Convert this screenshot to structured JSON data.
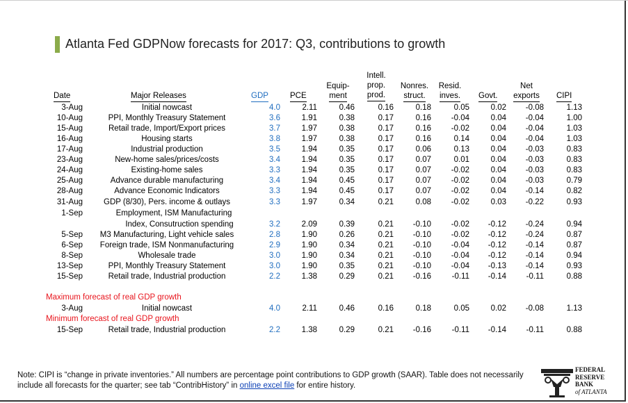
{
  "title": "Atlanta Fed GDPNow forecasts for 2017: Q3, contributions to growth",
  "headers": {
    "date": "Date",
    "releases": "Major Releases",
    "gdp": "GDP",
    "pce": "PCE",
    "equip_1": "Equip-",
    "equip_2": "ment",
    "ipp_1": "Intell.",
    "ipp_2": "prop.",
    "ipp_3": "prod.",
    "nonres_1": "Nonres.",
    "nonres_2": "struct.",
    "resid_1": "Resid.",
    "resid_2": "inves.",
    "govt": "Govt.",
    "netexp_1": "Net",
    "netexp_2": "exports",
    "cipi": "CIPI"
  },
  "rows": [
    {
      "date": "3-Aug",
      "release": "Initial nowcast",
      "gdp": "4.0",
      "pce": "2.11",
      "equip": "0.46",
      "ipp": "0.16",
      "nonres": "0.18",
      "resid": "0.05",
      "govt": "0.02",
      "netexp": "-0.08",
      "cipi": "1.13"
    },
    {
      "date": "10-Aug",
      "release": "PPI, Monthly Treasury Statement",
      "gdp": "3.6",
      "pce": "1.91",
      "equip": "0.38",
      "ipp": "0.17",
      "nonres": "0.16",
      "resid": "-0.04",
      "govt": "0.04",
      "netexp": "-0.04",
      "cipi": "1.00"
    },
    {
      "date": "15-Aug",
      "release": "Retail trade, Import/Export prices",
      "gdp": "3.7",
      "pce": "1.97",
      "equip": "0.38",
      "ipp": "0.17",
      "nonres": "0.16",
      "resid": "-0.02",
      "govt": "0.04",
      "netexp": "-0.04",
      "cipi": "1.03"
    },
    {
      "date": "16-Aug",
      "release": "Housing starts",
      "gdp": "3.8",
      "pce": "1.97",
      "equip": "0.38",
      "ipp": "0.17",
      "nonres": "0.16",
      "resid": "0.14",
      "govt": "0.04",
      "netexp": "-0.04",
      "cipi": "1.03"
    },
    {
      "date": "17-Aug",
      "release": "Industrial production",
      "gdp": "3.5",
      "pce": "1.94",
      "equip": "0.35",
      "ipp": "0.17",
      "nonres": "0.06",
      "resid": "0.13",
      "govt": "0.04",
      "netexp": "-0.03",
      "cipi": "0.83"
    },
    {
      "date": "23-Aug",
      "release": "New-home sales/prices/costs",
      "gdp": "3.4",
      "pce": "1.94",
      "equip": "0.35",
      "ipp": "0.17",
      "nonres": "0.07",
      "resid": "0.01",
      "govt": "0.04",
      "netexp": "-0.03",
      "cipi": "0.83"
    },
    {
      "date": "24-Aug",
      "release": "Existing-home sales",
      "gdp": "3.3",
      "pce": "1.94",
      "equip": "0.35",
      "ipp": "0.17",
      "nonres": "0.07",
      "resid": "-0.02",
      "govt": "0.04",
      "netexp": "-0.03",
      "cipi": "0.83"
    },
    {
      "date": "25-Aug",
      "release": "Advance durable manufacturing",
      "gdp": "3.4",
      "pce": "1.94",
      "equip": "0.45",
      "ipp": "0.17",
      "nonres": "0.07",
      "resid": "-0.02",
      "govt": "0.04",
      "netexp": "-0.03",
      "cipi": "0.79"
    },
    {
      "date": "28-Aug",
      "release": "Advance Economic Indicators",
      "gdp": "3.3",
      "pce": "1.94",
      "equip": "0.45",
      "ipp": "0.17",
      "nonres": "0.07",
      "resid": "-0.02",
      "govt": "0.04",
      "netexp": "-0.14",
      "cipi": "0.82"
    },
    {
      "date": "31-Aug",
      "release": "GDP (8/30), Pers. income & outlays",
      "gdp": "3.3",
      "pce": "1.97",
      "equip": "0.34",
      "ipp": "0.21",
      "nonres": "0.08",
      "resid": "-0.02",
      "govt": "0.03",
      "netexp": "-0.22",
      "cipi": "0.93"
    },
    {
      "date": "1-Sep",
      "release": "Employment, ISM Manufacturing",
      "gdp": "",
      "pce": "",
      "equip": "",
      "ipp": "",
      "nonres": "",
      "resid": "",
      "govt": "",
      "netexp": "",
      "cipi": ""
    },
    {
      "date": "",
      "release": "Index, Consutruction spending",
      "gdp": "3.2",
      "pce": "2.09",
      "equip": "0.39",
      "ipp": "0.21",
      "nonres": "-0.10",
      "resid": "-0.02",
      "govt": "-0.12",
      "netexp": "-0.24",
      "cipi": "0.94"
    },
    {
      "date": "5-Sep",
      "release": "M3 Manufacturing, Light vehicle sales",
      "gdp": "2.8",
      "pce": "1.90",
      "equip": "0.26",
      "ipp": "0.21",
      "nonres": "-0.10",
      "resid": "-0.02",
      "govt": "-0.12",
      "netexp": "-0.24",
      "cipi": "0.87"
    },
    {
      "date": "6-Sep",
      "release": "Foreign trade, ISM Nonmanufacturing",
      "gdp": "2.9",
      "pce": "1.90",
      "equip": "0.34",
      "ipp": "0.21",
      "nonres": "-0.10",
      "resid": "-0.04",
      "govt": "-0.12",
      "netexp": "-0.14",
      "cipi": "0.87"
    },
    {
      "date": "8-Sep",
      "release": "Wholesale trade",
      "gdp": "3.0",
      "pce": "1.90",
      "equip": "0.34",
      "ipp": "0.21",
      "nonres": "-0.10",
      "resid": "-0.04",
      "govt": "-0.12",
      "netexp": "-0.14",
      "cipi": "0.94"
    },
    {
      "date": "13-Sep",
      "release": "PPI, Monthly Treasury Statement",
      "gdp": "3.0",
      "pce": "1.90",
      "equip": "0.35",
      "ipp": "0.21",
      "nonres": "-0.10",
      "resid": "-0.04",
      "govt": "-0.13",
      "netexp": "-0.14",
      "cipi": "0.93"
    },
    {
      "date": "15-Sep",
      "release": "Retail trade, Industrial production",
      "gdp": "2.2",
      "pce": "1.38",
      "equip": "0.29",
      "ipp": "0.21",
      "nonres": "-0.16",
      "resid": "-0.11",
      "govt": "-0.14",
      "netexp": "-0.11",
      "cipi": "0.88"
    }
  ],
  "max_label": "Maximum forecast of real GDP growth",
  "max_row": {
    "date": "3-Aug",
    "release": "Initial nowcast",
    "gdp": "4.0",
    "pce": "2.11",
    "equip": "0.46",
    "ipp": "0.16",
    "nonres": "0.18",
    "resid": "0.05",
    "govt": "0.02",
    "netexp": "-0.08",
    "cipi": "1.13"
  },
  "min_label": "Minimum forecast of real GDP growth",
  "min_row": {
    "date": "15-Sep",
    "release": "Retail trade, Industrial production",
    "gdp": "2.2",
    "pce": "1.38",
    "equip": "0.29",
    "ipp": "0.21",
    "nonres": "-0.16",
    "resid": "-0.11",
    "govt": "-0.14",
    "netexp": "-0.11",
    "cipi": "0.88"
  },
  "note": {
    "before": "Note:  CIPI is “change in private inventories.”  All numbers are percentage point contributions to GDP growth (SAAR). Table does not necessarily include all forecasts for the quarter; see tab “ContribHistory” in ",
    "link": "online excel file",
    "after": " for entire history."
  },
  "logo": {
    "line1": "FEDERAL",
    "line2": "RESERVE",
    "line3": "BANK",
    "line4": "of ATLANTA"
  },
  "colors": {
    "accent": "#8bab4a",
    "gdp": "#1f6dbf",
    "highlight": "#e8141c",
    "link": "#0b3fb5"
  }
}
